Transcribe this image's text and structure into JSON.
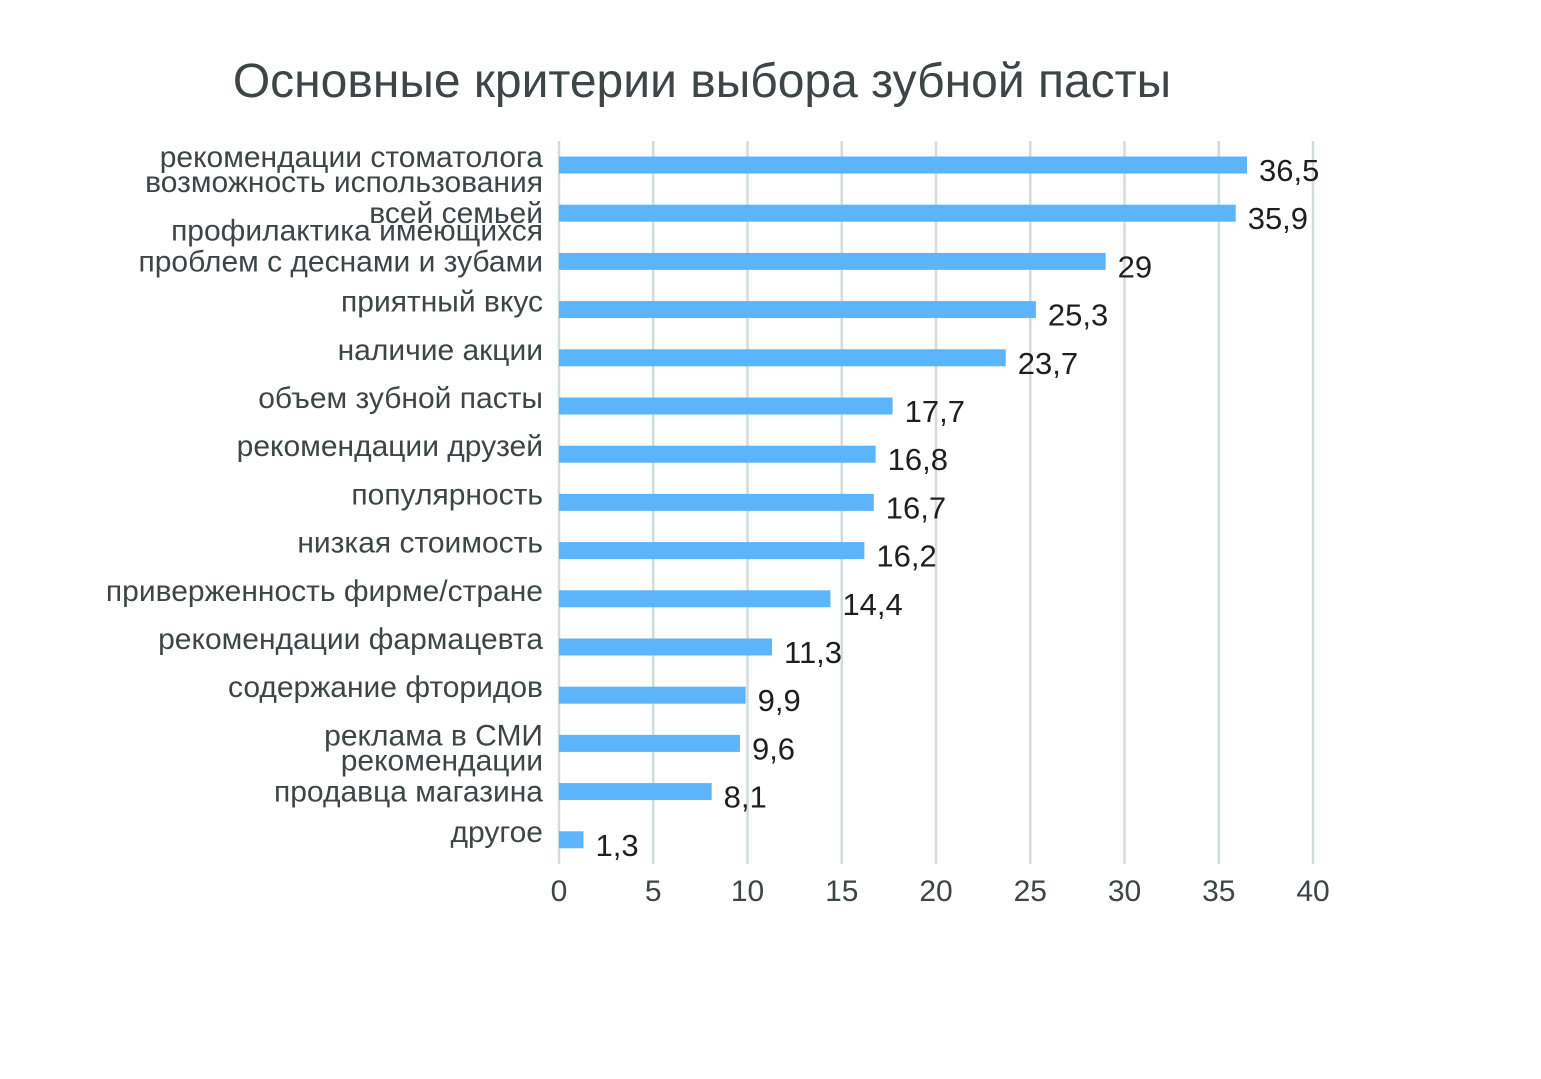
{
  "chart_data": {
    "type": "bar",
    "orientation": "horizontal",
    "title": "Основные критерии выбора зубной пасты",
    "xlabel": "",
    "ylabel": "",
    "xlim": [
      0,
      40
    ],
    "ticks": [
      "0",
      "5",
      "10",
      "15",
      "20",
      "25",
      "30",
      "35",
      "40"
    ],
    "tick_values": [
      0,
      5,
      10,
      15,
      20,
      25,
      30,
      35,
      40
    ],
    "grid": true,
    "legend": "none",
    "bar_color": "#5cb4fa",
    "categories": [
      [
        "рекомендации стоматолога"
      ],
      [
        "возможность использования",
        "всей семьей"
      ],
      [
        "профилактика имеющихся",
        "проблем с деснами и зубами"
      ],
      [
        "приятный вкус"
      ],
      [
        "наличие акции"
      ],
      [
        "объем зубной пасты"
      ],
      [
        "рекомендации друзей"
      ],
      [
        "популярность"
      ],
      [
        "низкая стоимость"
      ],
      [
        "приверженность фирме/стране"
      ],
      [
        "рекомендации фармацевта"
      ],
      [
        "содержание фторидов"
      ],
      [
        "реклама в СМИ"
      ],
      [
        "рекомендации",
        "продавца магазина"
      ],
      [
        "другое"
      ]
    ],
    "values": [
      36.5,
      35.9,
      29,
      25.3,
      23.7,
      17.7,
      16.8,
      16.7,
      16.2,
      14.4,
      11.3,
      9.9,
      9.6,
      8.1,
      1.3
    ],
    "value_labels": [
      "36,5",
      "35,9",
      "29",
      "25,3",
      "23,7",
      "17,7",
      "16,8",
      "16,7",
      "16,2",
      "14,4",
      "11,3",
      "9,9",
      "9,6",
      "8,1",
      "1,3"
    ]
  }
}
